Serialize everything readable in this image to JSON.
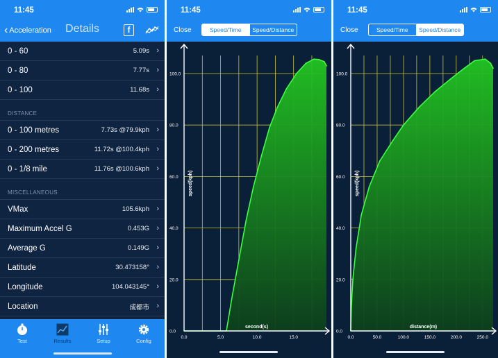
{
  "status": {
    "time": "11:45"
  },
  "details": {
    "back_label": "Acceleration",
    "title": "Details",
    "facebook_icon_text": "f",
    "speed_rows": [
      {
        "label": "0 - 60",
        "value": "5.09s"
      },
      {
        "label": "0 - 80",
        "value": "7.77s"
      },
      {
        "label": "0 - 100",
        "value": "11.68s"
      }
    ],
    "distance_header": "DISTANCE",
    "distance_rows": [
      {
        "label": "0 - 100 metres",
        "value": "7.73s @79.9kph"
      },
      {
        "label": "0 - 200 metres",
        "value": "11.72s @100.4kph"
      },
      {
        "label": "0 - 1/8 mile",
        "value": "11.76s @100.6kph"
      }
    ],
    "misc_header": "MISCELLANEOUS",
    "misc_rows": [
      {
        "label": "VMax",
        "value": "105.6kph"
      },
      {
        "label": "Maximum Accel G",
        "value": "0.453G"
      },
      {
        "label": "Average G",
        "value": "0.149G"
      },
      {
        "label": "Latitude",
        "value": "30.473158°"
      },
      {
        "label": "Longitude",
        "value": "104.043145°"
      },
      {
        "label": "Location",
        "value": "成都市"
      }
    ],
    "tabs": [
      {
        "label": "Test",
        "icon": "stopwatch-icon"
      },
      {
        "label": "Results",
        "icon": "graph-icon"
      },
      {
        "label": "Setup",
        "icon": "sliders-icon"
      },
      {
        "label": "Config",
        "icon": "gear-icon"
      }
    ],
    "active_tab": "Results"
  },
  "speed_time": {
    "close_label": "Close",
    "segments": [
      "Speed/Time",
      "Speed/Distance"
    ],
    "selected_segment": "Speed/Time"
  },
  "speed_distance": {
    "close_label": "Close",
    "segments": [
      "Speed/Time",
      "Speed/Distance"
    ],
    "selected_segment": "Speed/Distance"
  },
  "colors": {
    "bar_blue": "#1e88f0",
    "panel_bg": "#0a1f38",
    "grid": "#c9c23a",
    "curve": "#3dff3d"
  },
  "chart_data": [
    {
      "type": "area",
      "xlabel": "second(s)",
      "ylabel": "speed(kph)",
      "xlim": [
        0,
        19.5
      ],
      "ylim": [
        0,
        107
      ],
      "x_ticks": [
        "0.0",
        "5.0",
        "10.0",
        "15.0"
      ],
      "y_ticks": [
        "0.0",
        "20.0",
        "40.0",
        "60.0",
        "80.0",
        "100.0"
      ],
      "x": [
        0,
        5.8,
        6.5,
        7.4,
        8.5,
        9.5,
        10.6,
        11.7,
        12.8,
        14.0,
        15.4,
        16.7,
        17.8,
        18.5,
        19.2,
        19.5
      ],
      "y": [
        0,
        0,
        12,
        26,
        43,
        56,
        68,
        79,
        87,
        94,
        100,
        104,
        105.6,
        105.4,
        104.6,
        103
      ]
    },
    {
      "type": "area",
      "xlabel": "distance(m)",
      "ylabel": "speed(kph)",
      "xlim": [
        0,
        270
      ],
      "ylim": [
        0,
        107
      ],
      "x_ticks": [
        "0.0",
        "50.0",
        "100.0",
        "150.0",
        "200.0",
        "250.0"
      ],
      "y_ticks": [
        "0.0",
        "20.0",
        "40.0",
        "60.0",
        "80.0",
        "100.0"
      ],
      "x": [
        0,
        1,
        4,
        10,
        20,
        35,
        55,
        80,
        100,
        130,
        160,
        190,
        215,
        235,
        255,
        265,
        270
      ],
      "y": [
        0,
        9,
        20,
        32,
        45,
        56,
        66,
        74,
        80,
        87,
        93,
        98,
        102,
        105,
        105.6,
        104,
        102
      ]
    }
  ]
}
